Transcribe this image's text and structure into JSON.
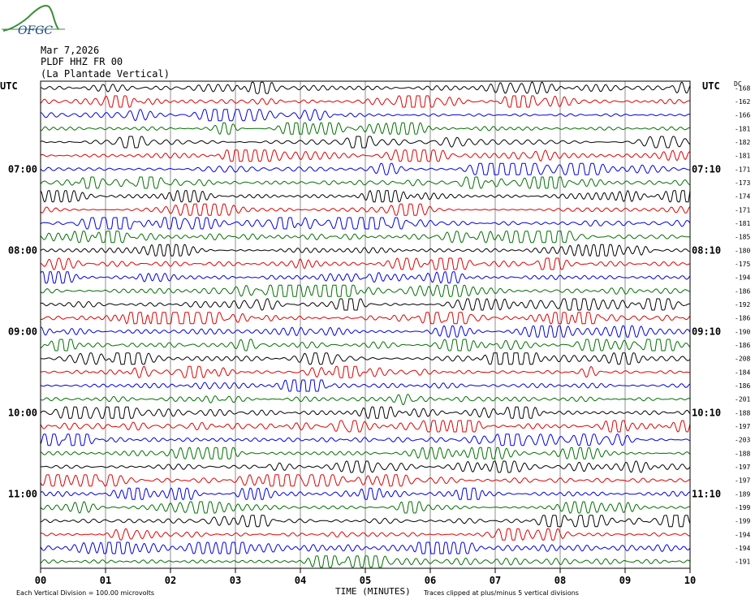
{
  "logo": {
    "text": "OFGC",
    "icon": "ofgc-logo-icon",
    "colors": {
      "wave": "#3a8f3a",
      "text": "#1a3f9a"
    }
  },
  "header": {
    "date": "Mar 7,2026",
    "station": "PLDF HHZ FR 00",
    "location": "(La Plantade Vertical)"
  },
  "chart_data": {
    "type": "line",
    "title": "",
    "xlabel": "TIME (MINUTES)",
    "ylabel": "",
    "x_ticks": [
      "00",
      "01",
      "02",
      "03",
      "04",
      "05",
      "06",
      "07",
      "08",
      "09",
      "10"
    ],
    "xlim": [
      0,
      10
    ],
    "left_axis_label": "UTC",
    "right_axis_label": "UTC",
    "dc_label": "DC",
    "left_hour_labels": [
      {
        "row": 6,
        "label": "07:00"
      },
      {
        "row": 12,
        "label": "08:00"
      },
      {
        "row": 18,
        "label": "09:00"
      },
      {
        "row": 24,
        "label": "10:00"
      },
      {
        "row": 30,
        "label": "11:00"
      }
    ],
    "right_hour_labels": [
      {
        "row": 6,
        "label": "07:10"
      },
      {
        "row": 12,
        "label": "08:10"
      },
      {
        "row": 18,
        "label": "09:10"
      },
      {
        "row": 24,
        "label": "10:10"
      },
      {
        "row": 30,
        "label": "11:10"
      }
    ],
    "trace_colors": [
      "#000000",
      "#e00000",
      "#0000e0",
      "#007000"
    ],
    "dc_offsets": [
      "-168",
      "-162",
      "-166",
      "-181",
      "-182",
      "-181",
      "-171",
      "-173",
      "-174",
      "-171",
      "-181",
      "-185",
      "-180",
      "-175",
      "-194",
      "-186",
      "-192",
      "-186",
      "-190",
      "-186",
      "-208",
      "-184",
      "-186",
      "-201",
      "-188",
      "-197",
      "-203",
      "-188",
      "-197",
      "-197",
      "-189",
      "-199",
      "-199",
      "-194",
      "-194",
      "-191"
    ],
    "grid": true,
    "footer": {
      "scale": "Each Vertical Division =  100.00 microvolts",
      "clip": "Traces clipped at plus/minus 5 vertical divisions"
    }
  }
}
